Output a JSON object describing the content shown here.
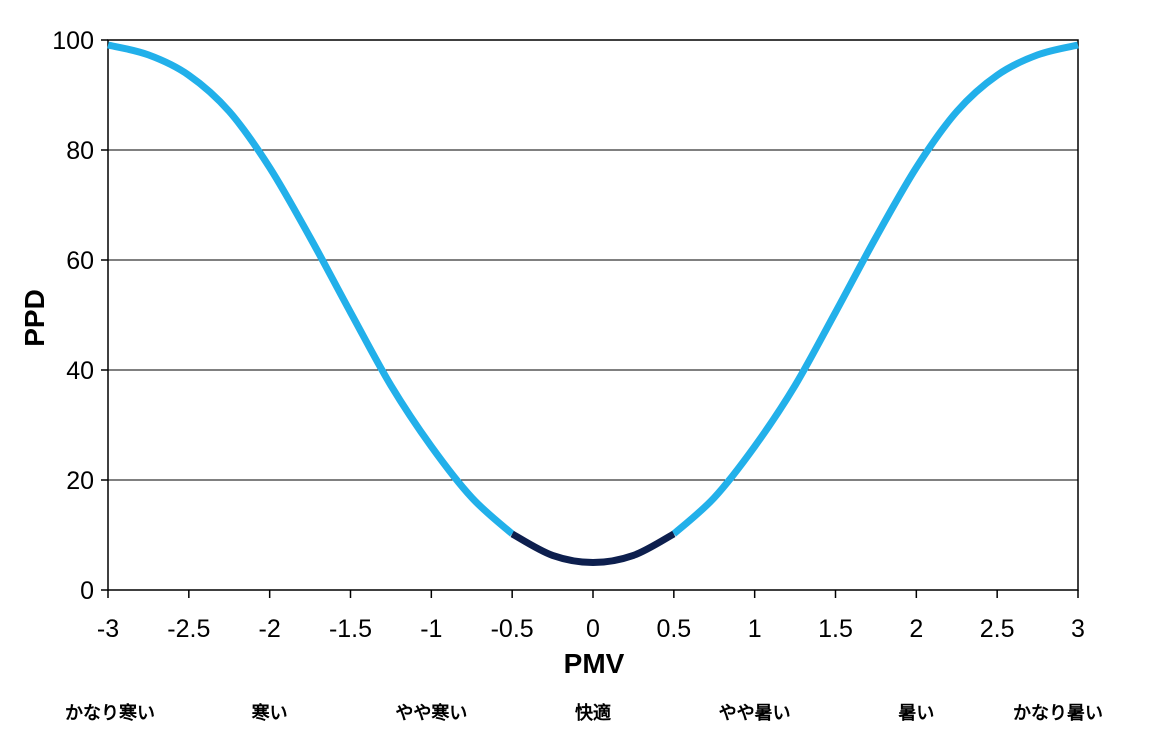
{
  "chart_data": {
    "type": "line",
    "xlabel": "PMV",
    "ylabel": "PPD",
    "xlim": [
      -3,
      3
    ],
    "ylim": [
      0,
      100
    ],
    "x_ticks": [
      "-3",
      "-2.5",
      "-2",
      "-1.5",
      "-1",
      "-0.5",
      "0",
      "0.5",
      "1",
      "1.5",
      "2",
      "2.5",
      "3"
    ],
    "y_ticks": [
      "0",
      "20",
      "40",
      "60",
      "80",
      "100"
    ],
    "grid": "horizontal",
    "sensation_labels": [
      "かなり寒い",
      "寒い",
      "やや寒い",
      "快適",
      "やや暑い",
      "暑い",
      "かなり暑い"
    ],
    "series": [
      {
        "color": "#22b0ea",
        "x": [
          -3.0,
          -2.75,
          -2.5,
          -2.25,
          -2.0,
          -1.75,
          -1.5,
          -1.25,
          -1.0,
          -0.75,
          -0.5,
          0.5,
          0.75,
          1.0,
          1.25,
          1.5,
          1.75,
          2.0,
          2.25,
          2.5,
          2.75,
          3.0
        ],
        "y": [
          99.1,
          97.3,
          93.6,
          87.0,
          76.8,
          64.1,
          50.5,
          37.2,
          26.1,
          16.8,
          10.2,
          10.2,
          16.8,
          26.1,
          37.2,
          50.5,
          64.1,
          76.8,
          87.0,
          93.6,
          97.3,
          99.1
        ]
      },
      {
        "color": "#0d1f4e",
        "x": [
          -0.5,
          -0.25,
          0,
          0.25,
          0.5
        ],
        "y": [
          10.2,
          6.3,
          5.0,
          6.3,
          10.2
        ]
      }
    ]
  }
}
